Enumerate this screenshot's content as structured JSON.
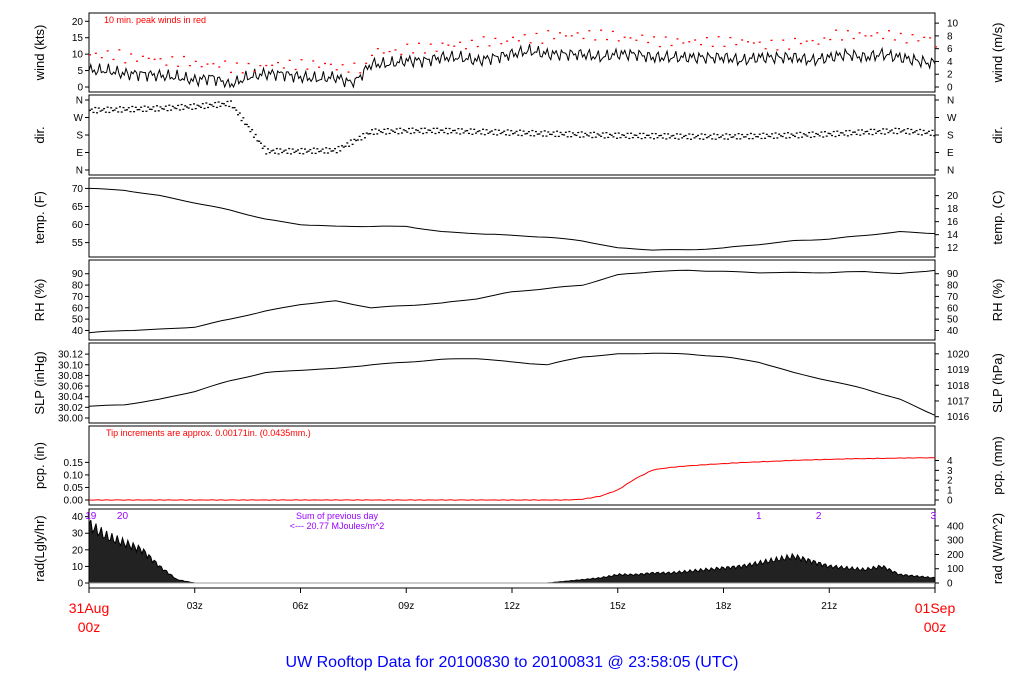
{
  "title": "UW Rooftop Data for 20100830  to  20100831 @ 23:58:05  (UTC)",
  "colors": {
    "title": "#0000ff",
    "peak": "#ff0000",
    "note": "#ff0000",
    "rad_label": "#9900ff",
    "line": "#000000",
    "pcp": "#ff0000"
  },
  "x_ticks": [
    {
      "hour": 0,
      "label": "31Aug",
      "label2": "00z",
      "major": true
    },
    {
      "hour": 3,
      "label": "03z"
    },
    {
      "hour": 6,
      "label": "06z"
    },
    {
      "hour": 9,
      "label": "09z"
    },
    {
      "hour": 12,
      "label": "12z"
    },
    {
      "hour": 15,
      "label": "15z"
    },
    {
      "hour": 18,
      "label": "18z"
    },
    {
      "hour": 21,
      "label": "21z"
    },
    {
      "hour": 24,
      "label": "01Sep",
      "label2": "00z",
      "major": true
    }
  ],
  "chart_data": [
    {
      "type": "line",
      "id": "wind",
      "ylabel": "wind (kts)",
      "ylabel_right": "wind (m/s)",
      "ylim": [
        0,
        21
      ],
      "yticks": [
        0,
        5,
        10,
        15,
        20
      ],
      "yticks_right": [
        0,
        2,
        4,
        6,
        8,
        10
      ],
      "right_factor": 0.5144,
      "annotation": "10 min. peak winds in red",
      "x_step_hours": 0.5,
      "values": [
        5,
        5,
        4,
        4,
        3.5,
        3,
        2,
        3,
        0.5,
        3,
        4,
        4,
        3,
        2.5,
        3,
        1,
        7,
        7,
        8,
        8,
        9,
        9,
        8,
        9,
        10,
        11,
        10,
        10,
        10,
        9,
        10,
        10,
        9,
        9,
        9,
        9,
        9,
        8,
        9,
        9,
        9,
        8,
        9,
        10,
        9,
        10,
        9,
        8,
        7
      ],
      "peaks_hourly": [
        10,
        9,
        8,
        7,
        6,
        7,
        7,
        6,
        11,
        12,
        13,
        14,
        15,
        16,
        16,
        15,
        14,
        14,
        14,
        13,
        14,
        16,
        16,
        15,
        13
      ]
    },
    {
      "type": "scatter",
      "id": "dir",
      "ylabel": "dir.",
      "ylabel_right": "dir.",
      "ylim": [
        0,
        360
      ],
      "yticks": [
        "N",
        "E",
        "S",
        "W",
        "N"
      ],
      "ytick_values": [
        0,
        90,
        180,
        270,
        360
      ],
      "x_step_hours": 1,
      "values": [
        310,
        315,
        320,
        330,
        345,
        100,
        100,
        105,
        200,
        205,
        205,
        200,
        195,
        190,
        185,
        180,
        178,
        175,
        175,
        178,
        182,
        188,
        198,
        205,
        192
      ]
    },
    {
      "type": "line",
      "id": "temp",
      "ylabel": "temp. (F)",
      "ylabel_right": "temp. (C)",
      "ylim": [
        52.4,
        71.5
      ],
      "yticks": [
        55,
        60,
        65,
        70
      ],
      "yticks_right": [
        12,
        14,
        16,
        18,
        20
      ],
      "x_step_hours": 1,
      "values": [
        70,
        69.5,
        68,
        66,
        64,
        61.5,
        60,
        59.5,
        59.5,
        59.5,
        58,
        57.5,
        57,
        56.5,
        55.5,
        53.5,
        53,
        53,
        53.5,
        54.5,
        55.5,
        56,
        57,
        58,
        57.5
      ]
    },
    {
      "type": "line",
      "id": "rh",
      "ylabel": "RH (%)",
      "ylabel_right": "RH (%)",
      "ylim": [
        36,
        97.7
      ],
      "yticks": [
        40,
        50,
        60,
        70,
        80,
        90
      ],
      "yticks_right": [
        40,
        50,
        60,
        70,
        80,
        90
      ],
      "x_step_hours": 1,
      "values": [
        38,
        40,
        41,
        43,
        50,
        57,
        63,
        66,
        60,
        62,
        64,
        68,
        74,
        77,
        80,
        89,
        92,
        93,
        92,
        91,
        91,
        91,
        92,
        90,
        93
      ]
    },
    {
      "type": "line",
      "id": "slp",
      "ylabel": "SLP (inHg)",
      "ylabel_right": "SLP (hPa)",
      "ylim": [
        30.0,
        30.1315
      ],
      "yticks": [
        "30.00",
        "30.02",
        "30.04",
        "30.06",
        "30.08",
        "30.10",
        "30.12"
      ],
      "yticks_right": [
        1016,
        1017,
        1018,
        1019,
        1020
      ],
      "x_step_hours": 1,
      "values": [
        30.022,
        30.025,
        30.035,
        30.05,
        30.07,
        30.085,
        30.09,
        30.093,
        30.1,
        30.105,
        30.11,
        30.112,
        30.105,
        30.1,
        30.115,
        30.12,
        30.122,
        30.12,
        30.115,
        30.105,
        30.085,
        30.07,
        30.055,
        30.035,
        30.005
      ]
    },
    {
      "type": "line",
      "id": "pcp",
      "ylabel": "pcp. (in)",
      "ylabel_right": "pcp. (mm)",
      "ylim": [
        0,
        0.275
      ],
      "yticks": [
        "0.00",
        "0.05",
        "0.10",
        "0.15"
      ],
      "yticks_right": [
        0,
        1,
        2,
        3,
        4
      ],
      "annotation": "Tip increments are approx. 0.00171in. (0.0435mm.)",
      "x_step_hours": 0.5,
      "values": [
        0,
        0,
        0,
        0,
        0,
        0,
        0,
        0,
        0,
        0,
        0,
        0,
        0,
        0,
        0,
        0,
        0,
        0,
        0,
        0,
        0,
        0,
        0,
        0,
        0,
        0,
        0,
        0,
        0.003,
        0.015,
        0.04,
        0.085,
        0.12,
        0.13,
        0.136,
        0.141,
        0.145,
        0.149,
        0.152,
        0.155,
        0.158,
        0.16,
        0.162,
        0.164,
        0.165,
        0.166,
        0.167,
        0.168,
        0.168
      ]
    },
    {
      "type": "area",
      "id": "rad",
      "ylabel": "rad(Lgly/hr)",
      "ylabel_right": "rad (W/m^2)",
      "ylim": [
        0,
        41.6
      ],
      "yticks": [
        0,
        10,
        20,
        30,
        40
      ],
      "yticks_right": [
        0,
        100,
        200,
        300,
        400
      ],
      "annotation": "Sum of previous day",
      "annotation2": "<--- 20.77 MJoules/m^2",
      "markers": [
        {
          "hour": 0.05,
          "label": "19"
        },
        {
          "hour": 0.95,
          "label": "20"
        },
        {
          "hour": 19.0,
          "label": "1"
        },
        {
          "hour": 20.7,
          "label": "2"
        },
        {
          "hour": 23.95,
          "label": "3"
        }
      ],
      "x_step_hours": 0.5,
      "values": [
        35,
        28,
        24,
        20,
        10,
        2,
        0,
        0,
        0,
        0,
        0,
        0,
        0,
        0,
        0,
        0,
        0,
        0,
        0,
        0,
        0,
        0,
        0,
        0,
        0,
        0,
        0,
        1,
        2,
        3,
        5,
        5,
        6,
        6,
        7,
        8,
        9,
        10,
        12,
        14,
        16,
        13,
        10,
        9,
        8,
        10,
        5,
        4,
        3
      ]
    }
  ]
}
